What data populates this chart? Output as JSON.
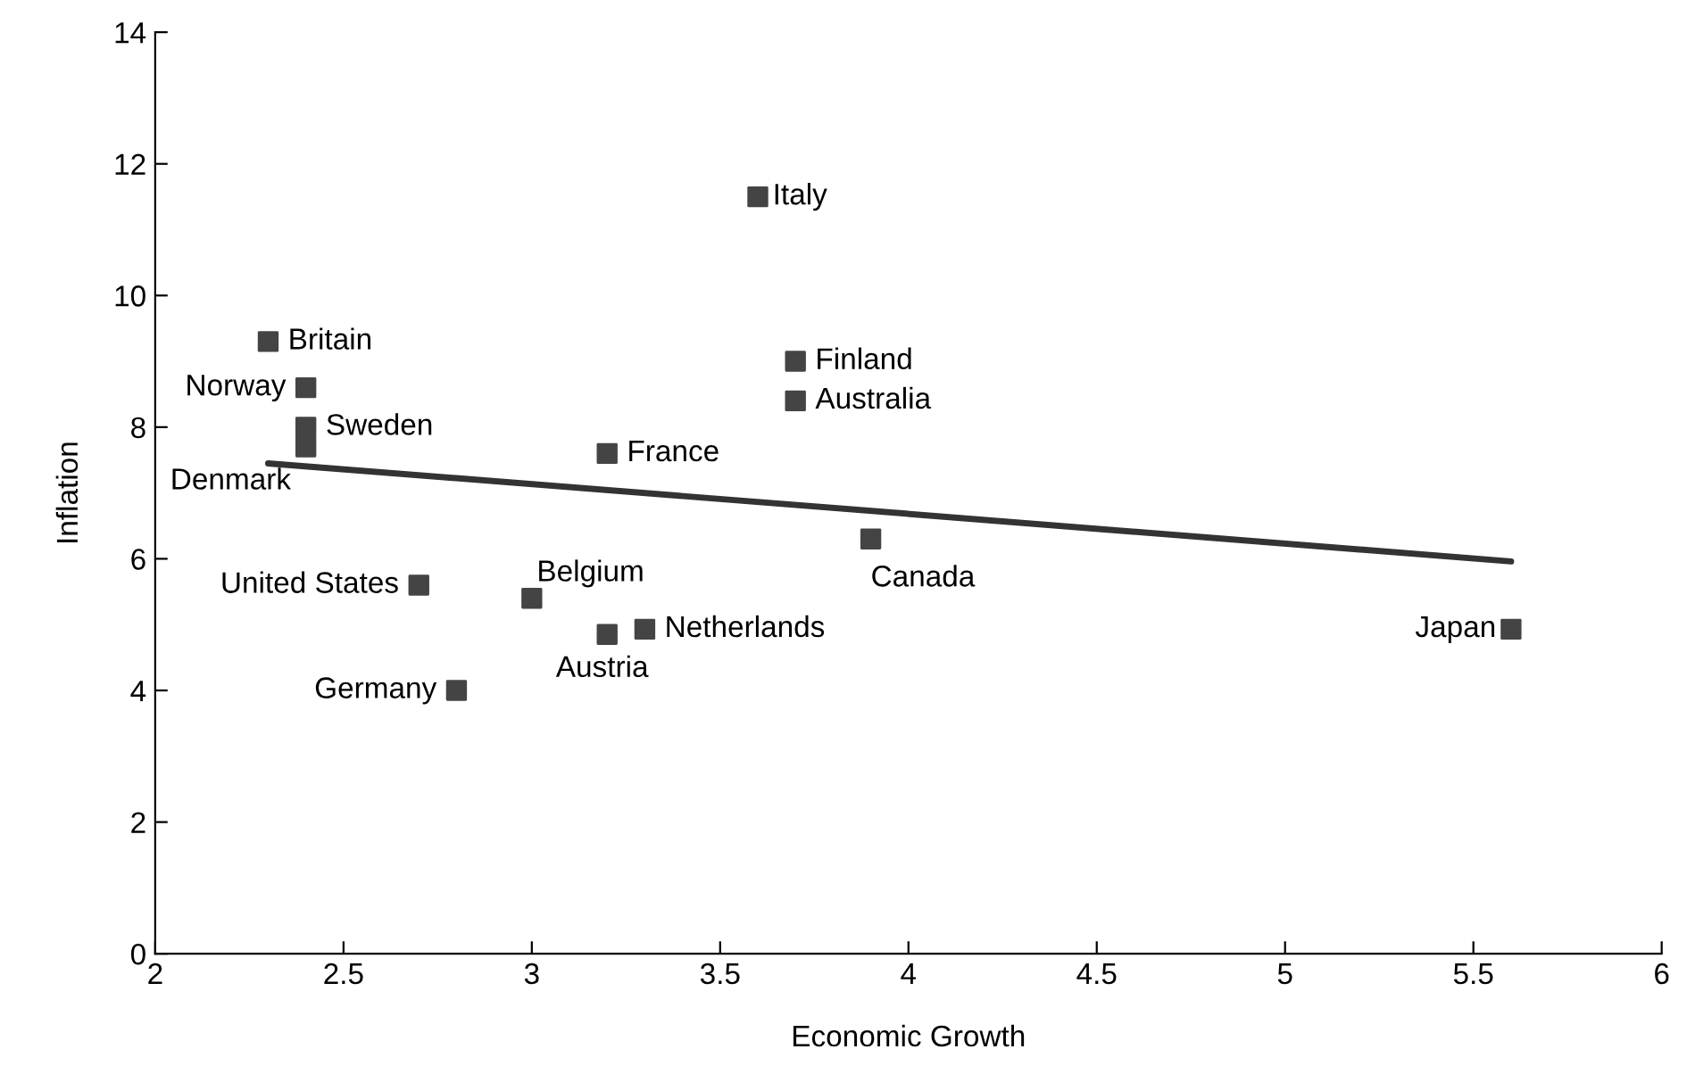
{
  "chart_data": {
    "type": "scatter",
    "xlabel": "Economic Growth",
    "ylabel": "Inflation",
    "xlim": [
      2,
      6
    ],
    "xticks": [
      2,
      2.5,
      3,
      3.5,
      4,
      4.5,
      5,
      5.5,
      6
    ],
    "ylim": [
      0,
      14
    ],
    "yticks": [
      0,
      2,
      4,
      6,
      8,
      10,
      12,
      14
    ],
    "grid": false,
    "series": [
      {
        "marker": "square",
        "color": "#444444",
        "x": [
          2.3,
          2.4,
          2.4,
          2.4,
          2.7,
          2.8,
          3.0,
          3.2,
          3.3,
          3.2,
          3.6,
          3.7,
          3.7,
          3.9,
          5.6
        ],
        "values": [
          9.3,
          8.6,
          8.0,
          7.7,
          5.6,
          4.0,
          5.4,
          4.85,
          4.93,
          7.6,
          11.5,
          9.0,
          8.4,
          6.3,
          4.93
        ]
      },
      {
        "type": "line",
        "color": "#333333",
        "x": [
          2.3,
          5.6
        ],
        "values": [
          7.45,
          5.96
        ]
      }
    ],
    "annotations": [
      {
        "text": "Britain",
        "x": 2.3,
        "y": 9.3
      },
      {
        "text": "Norway",
        "x": 2.4,
        "y": 8.6
      },
      {
        "text": "Sweden",
        "x": 2.4,
        "y": 8.0
      },
      {
        "text": "Denmark",
        "x": 2.4,
        "y": 7.7
      },
      {
        "text": "United States",
        "x": 2.7,
        "y": 5.6
      },
      {
        "text": "Germany",
        "x": 2.8,
        "y": 4.0
      },
      {
        "text": "Belgium",
        "x": 3.0,
        "y": 5.4
      },
      {
        "text": "Austria",
        "x": 3.2,
        "y": 4.85
      },
      {
        "text": "Netherlands",
        "x": 3.3,
        "y": 4.93
      },
      {
        "text": "France",
        "x": 3.2,
        "y": 7.6
      },
      {
        "text": "Italy",
        "x": 3.6,
        "y": 11.5
      },
      {
        "text": "Finland",
        "x": 3.7,
        "y": 9.0
      },
      {
        "text": "Australia",
        "x": 3.7,
        "y": 8.4
      },
      {
        "text": "Canada",
        "x": 3.9,
        "y": 6.3
      },
      {
        "text": "Japan",
        "x": 5.6,
        "y": 4.93
      }
    ]
  }
}
